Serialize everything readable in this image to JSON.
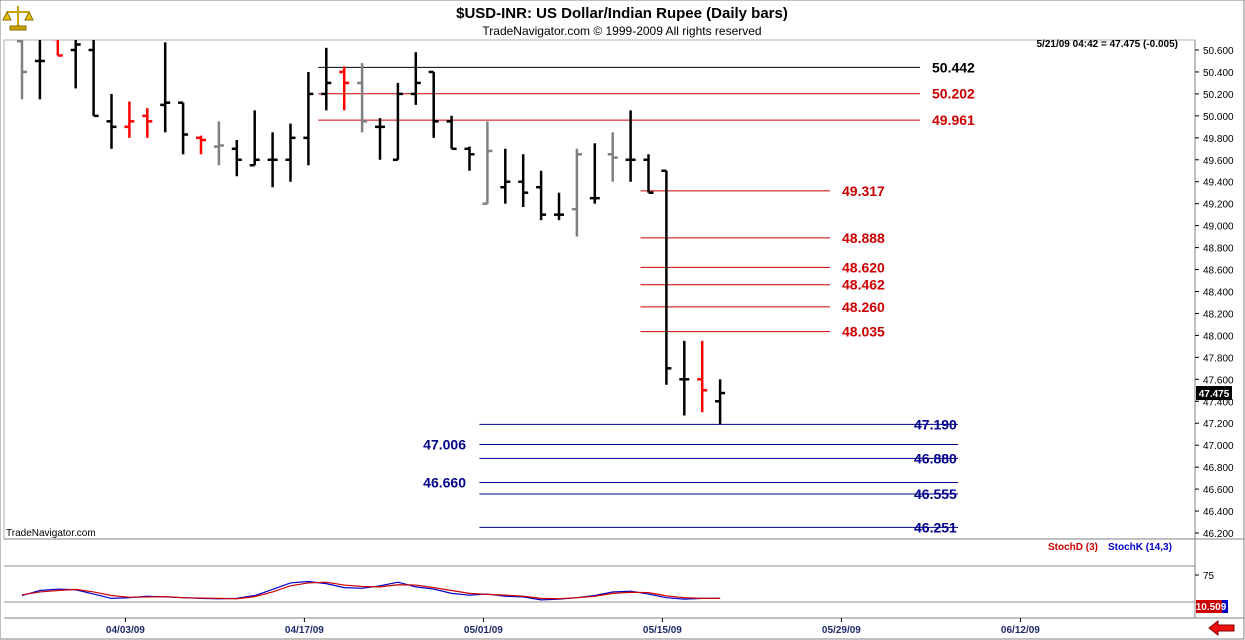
{
  "header": {
    "title": "$USD-INR:  US Dollar/Indian Rupee  (Daily bars)",
    "subtitle": "TradeNavigator.com © 1999-2009 All rights reserved"
  },
  "status_readout": "5/21/09 04:42 = 47.475 (-0.005)",
  "watermark": "TradeNavigator.com",
  "last_price_badge": "47.475",
  "stoch_badge": "10.509",
  "colors": {
    "up_bar": "#000000",
    "down_bar": "#ff0000",
    "neutral_bar": "#808080",
    "resistance_line": "#cc0000",
    "support_line": "#00008b",
    "stoch_k": "#0000cc",
    "stoch_d": "#cc0000"
  },
  "icons": {
    "logo": "scale-icon",
    "scroll_button": "red-left-arrow-icon"
  },
  "chart_data": [
    {
      "type": "ohlc",
      "title": "$USD-INR:  US Dollar/Indian Rupee  (Daily bars)",
      "y_axis_side": "right",
      "ylim": [
        46.15,
        50.65
      ],
      "y_ticks": [
        "50.600",
        "50.400",
        "50.200",
        "50.000",
        "49.800",
        "49.600",
        "49.400",
        "49.200",
        "49.000",
        "48.800",
        "48.600",
        "48.400",
        "48.200",
        "48.000",
        "47.800",
        "47.600",
        "47.400",
        "47.200",
        "47.000",
        "46.800",
        "46.600",
        "46.400",
        "46.200"
      ],
      "x_ticks": [
        {
          "label": "04/03/09",
          "bar_index": 6
        },
        {
          "label": "04/17/09",
          "bar_index": 16
        },
        {
          "label": "05/01/09",
          "bar_index": 26
        },
        {
          "label": "05/15/09",
          "bar_index": 36
        },
        {
          "label": "05/29/09",
          "bar_index": 46
        },
        {
          "label": "06/12/09",
          "bar_index": 56
        }
      ],
      "bars": [
        {
          "o": 50.68,
          "h": 50.9,
          "l": 50.15,
          "c": 50.4,
          "color": "neutral"
        },
        {
          "o": 50.5,
          "h": 50.75,
          "l": 50.15,
          "c": 50.5,
          "color": "up"
        },
        {
          "o": 50.7,
          "h": 50.75,
          "l": 50.55,
          "c": 50.55,
          "color": "down"
        },
        {
          "o": 50.6,
          "h": 50.72,
          "l": 50.25,
          "c": 50.65,
          "color": "up"
        },
        {
          "o": 50.6,
          "h": 50.72,
          "l": 50.0,
          "c": 50.0,
          "color": "up"
        },
        {
          "o": 49.95,
          "h": 50.2,
          "l": 49.7,
          "c": 49.9,
          "color": "up"
        },
        {
          "o": 49.9,
          "h": 50.13,
          "l": 49.8,
          "c": 49.95,
          "color": "down"
        },
        {
          "o": 50.0,
          "h": 50.07,
          "l": 49.8,
          "c": 49.95,
          "color": "down"
        },
        {
          "o": 50.1,
          "h": 50.67,
          "l": 49.85,
          "c": 50.12,
          "color": "up"
        },
        {
          "o": 50.12,
          "h": 50.12,
          "l": 49.65,
          "c": 49.83,
          "color": "up"
        },
        {
          "o": 49.8,
          "h": 49.82,
          "l": 49.65,
          "c": 49.78,
          "color": "down"
        },
        {
          "o": 49.72,
          "h": 49.95,
          "l": 49.55,
          "c": 49.73,
          "color": "neutral"
        },
        {
          "o": 49.7,
          "h": 49.78,
          "l": 49.45,
          "c": 49.6,
          "color": "up"
        },
        {
          "o": 49.55,
          "h": 50.05,
          "l": 49.55,
          "c": 49.6,
          "color": "up"
        },
        {
          "o": 49.6,
          "h": 49.85,
          "l": 49.35,
          "c": 49.6,
          "color": "up"
        },
        {
          "o": 49.6,
          "h": 49.93,
          "l": 49.4,
          "c": 49.8,
          "color": "up"
        },
        {
          "o": 49.8,
          "h": 50.4,
          "l": 49.55,
          "c": 50.2,
          "color": "up"
        },
        {
          "o": 50.2,
          "h": 50.62,
          "l": 50.05,
          "c": 50.3,
          "color": "up"
        },
        {
          "o": 50.4,
          "h": 50.45,
          "l": 50.05,
          "c": 50.3,
          "color": "down"
        },
        {
          "o": 50.3,
          "h": 50.48,
          "l": 49.85,
          "c": 49.95,
          "color": "neutral"
        },
        {
          "o": 49.9,
          "h": 49.98,
          "l": 49.6,
          "c": 49.9,
          "color": "up"
        },
        {
          "o": 49.6,
          "h": 50.3,
          "l": 49.6,
          "c": 50.2,
          "color": "up"
        },
        {
          "o": 50.2,
          "h": 50.58,
          "l": 50.1,
          "c": 50.3,
          "color": "up"
        },
        {
          "o": 50.4,
          "h": 50.4,
          "l": 49.8,
          "c": 49.95,
          "color": "up"
        },
        {
          "o": 49.95,
          "h": 50.0,
          "l": 49.7,
          "c": 49.7,
          "color": "up"
        },
        {
          "o": 49.7,
          "h": 49.72,
          "l": 49.5,
          "c": 49.65,
          "color": "up"
        },
        {
          "o": 49.2,
          "h": 49.95,
          "l": 49.2,
          "c": 49.68,
          "color": "neutral"
        },
        {
          "o": 49.35,
          "h": 49.7,
          "l": 49.2,
          "c": 49.4,
          "color": "up"
        },
        {
          "o": 49.4,
          "h": 49.65,
          "l": 49.17,
          "c": 49.3,
          "color": "up"
        },
        {
          "o": 49.35,
          "h": 49.5,
          "l": 49.05,
          "c": 49.1,
          "color": "up"
        },
        {
          "o": 49.1,
          "h": 49.3,
          "l": 49.05,
          "c": 49.1,
          "color": "up"
        },
        {
          "o": 49.15,
          "h": 49.7,
          "l": 48.9,
          "c": 49.65,
          "color": "neutral"
        },
        {
          "o": 49.25,
          "h": 49.75,
          "l": 49.2,
          "c": 49.25,
          "color": "up"
        },
        {
          "o": 49.65,
          "h": 49.85,
          "l": 49.4,
          "c": 49.62,
          "color": "neutral"
        },
        {
          "o": 49.6,
          "h": 50.05,
          "l": 49.4,
          "c": 49.6,
          "color": "up"
        },
        {
          "o": 49.6,
          "h": 49.65,
          "l": 49.3,
          "c": 49.3,
          "color": "up"
        },
        {
          "o": 49.5,
          "h": 49.5,
          "l": 47.55,
          "c": 47.7,
          "color": "up"
        },
        {
          "o": 47.6,
          "h": 47.95,
          "l": 47.27,
          "c": 47.6,
          "color": "up"
        },
        {
          "o": 47.6,
          "h": 47.95,
          "l": 47.3,
          "c": 47.5,
          "color": "down"
        },
        {
          "o": 47.4,
          "h": 47.6,
          "l": 47.19,
          "c": 47.475,
          "color": "up"
        }
      ],
      "levels": [
        {
          "value": 50.442,
          "label": "50.442",
          "kind": "neutral",
          "from_bar": 17,
          "label_side": "right"
        },
        {
          "value": 50.202,
          "label": "50.202",
          "kind": "resistance",
          "from_bar": 17,
          "label_side": "right"
        },
        {
          "value": 49.961,
          "label": "49.961",
          "kind": "resistance",
          "from_bar": 17,
          "label_side": "right"
        },
        {
          "value": 49.317,
          "label": "49.317",
          "kind": "resistance",
          "from_bar": 35,
          "label_side": "right"
        },
        {
          "value": 48.888,
          "label": "48.888",
          "kind": "resistance",
          "from_bar": 35,
          "label_side": "right"
        },
        {
          "value": 48.62,
          "label": "48.620",
          "kind": "resistance",
          "from_bar": 35,
          "label_side": "right"
        },
        {
          "value": 48.462,
          "label": "48.462",
          "kind": "resistance",
          "from_bar": 35,
          "label_side": "right"
        },
        {
          "value": 48.26,
          "label": "48.260",
          "kind": "resistance",
          "from_bar": 35,
          "label_side": "right"
        },
        {
          "value": 48.035,
          "label": "48.035",
          "kind": "resistance",
          "from_bar": 35,
          "label_side": "right"
        },
        {
          "value": 47.19,
          "label": "47.190",
          "kind": "support",
          "from_bar": 26,
          "label_side": "right"
        },
        {
          "value": 47.006,
          "label": "47.006",
          "kind": "support",
          "from_bar": 26,
          "label_side": "left"
        },
        {
          "value": 46.88,
          "label": "46.880",
          "kind": "support",
          "from_bar": 26,
          "label_side": "right"
        },
        {
          "value": 46.66,
          "label": "46.660",
          "kind": "support",
          "from_bar": 26,
          "label_side": "left"
        },
        {
          "value": 46.555,
          "label": "46.555",
          "kind": "support",
          "from_bar": 26,
          "label_side": "right"
        },
        {
          "value": 46.251,
          "label": "46.251",
          "kind": "support",
          "from_bar": 26,
          "label_side": "right"
        }
      ]
    },
    {
      "type": "line",
      "legend": [
        "StochD (3)",
        "StochK (14,3)"
      ],
      "legend_position": "top-right",
      "ylim": [
        0,
        100
      ],
      "y_ticks": [
        "75"
      ],
      "reference_lines": [
        100,
        0
      ],
      "series": [
        {
          "name": "StochK (14,3)",
          "kind": "k",
          "values": [
            18,
            32,
            36,
            34,
            22,
            10,
            12,
            16,
            14,
            12,
            10,
            9,
            10,
            18,
            35,
            53,
            57,
            51,
            40,
            38,
            45,
            55,
            42,
            36,
            24,
            19,
            22,
            16,
            14,
            6,
            8,
            12,
            18,
            28,
            30,
            22,
            12,
            8,
            10,
            10.5
          ]
        },
        {
          "name": "StochD (3)",
          "kind": "d",
          "values": [
            20,
            28,
            32,
            35,
            28,
            18,
            13,
            14,
            15,
            12,
            11,
            10,
            9,
            15,
            28,
            45,
            53,
            55,
            47,
            43,
            42,
            48,
            47,
            40,
            32,
            24,
            21,
            19,
            16,
            10,
            9,
            12,
            16,
            24,
            27,
            26,
            17,
            12,
            10,
            10
          ]
        }
      ]
    }
  ]
}
